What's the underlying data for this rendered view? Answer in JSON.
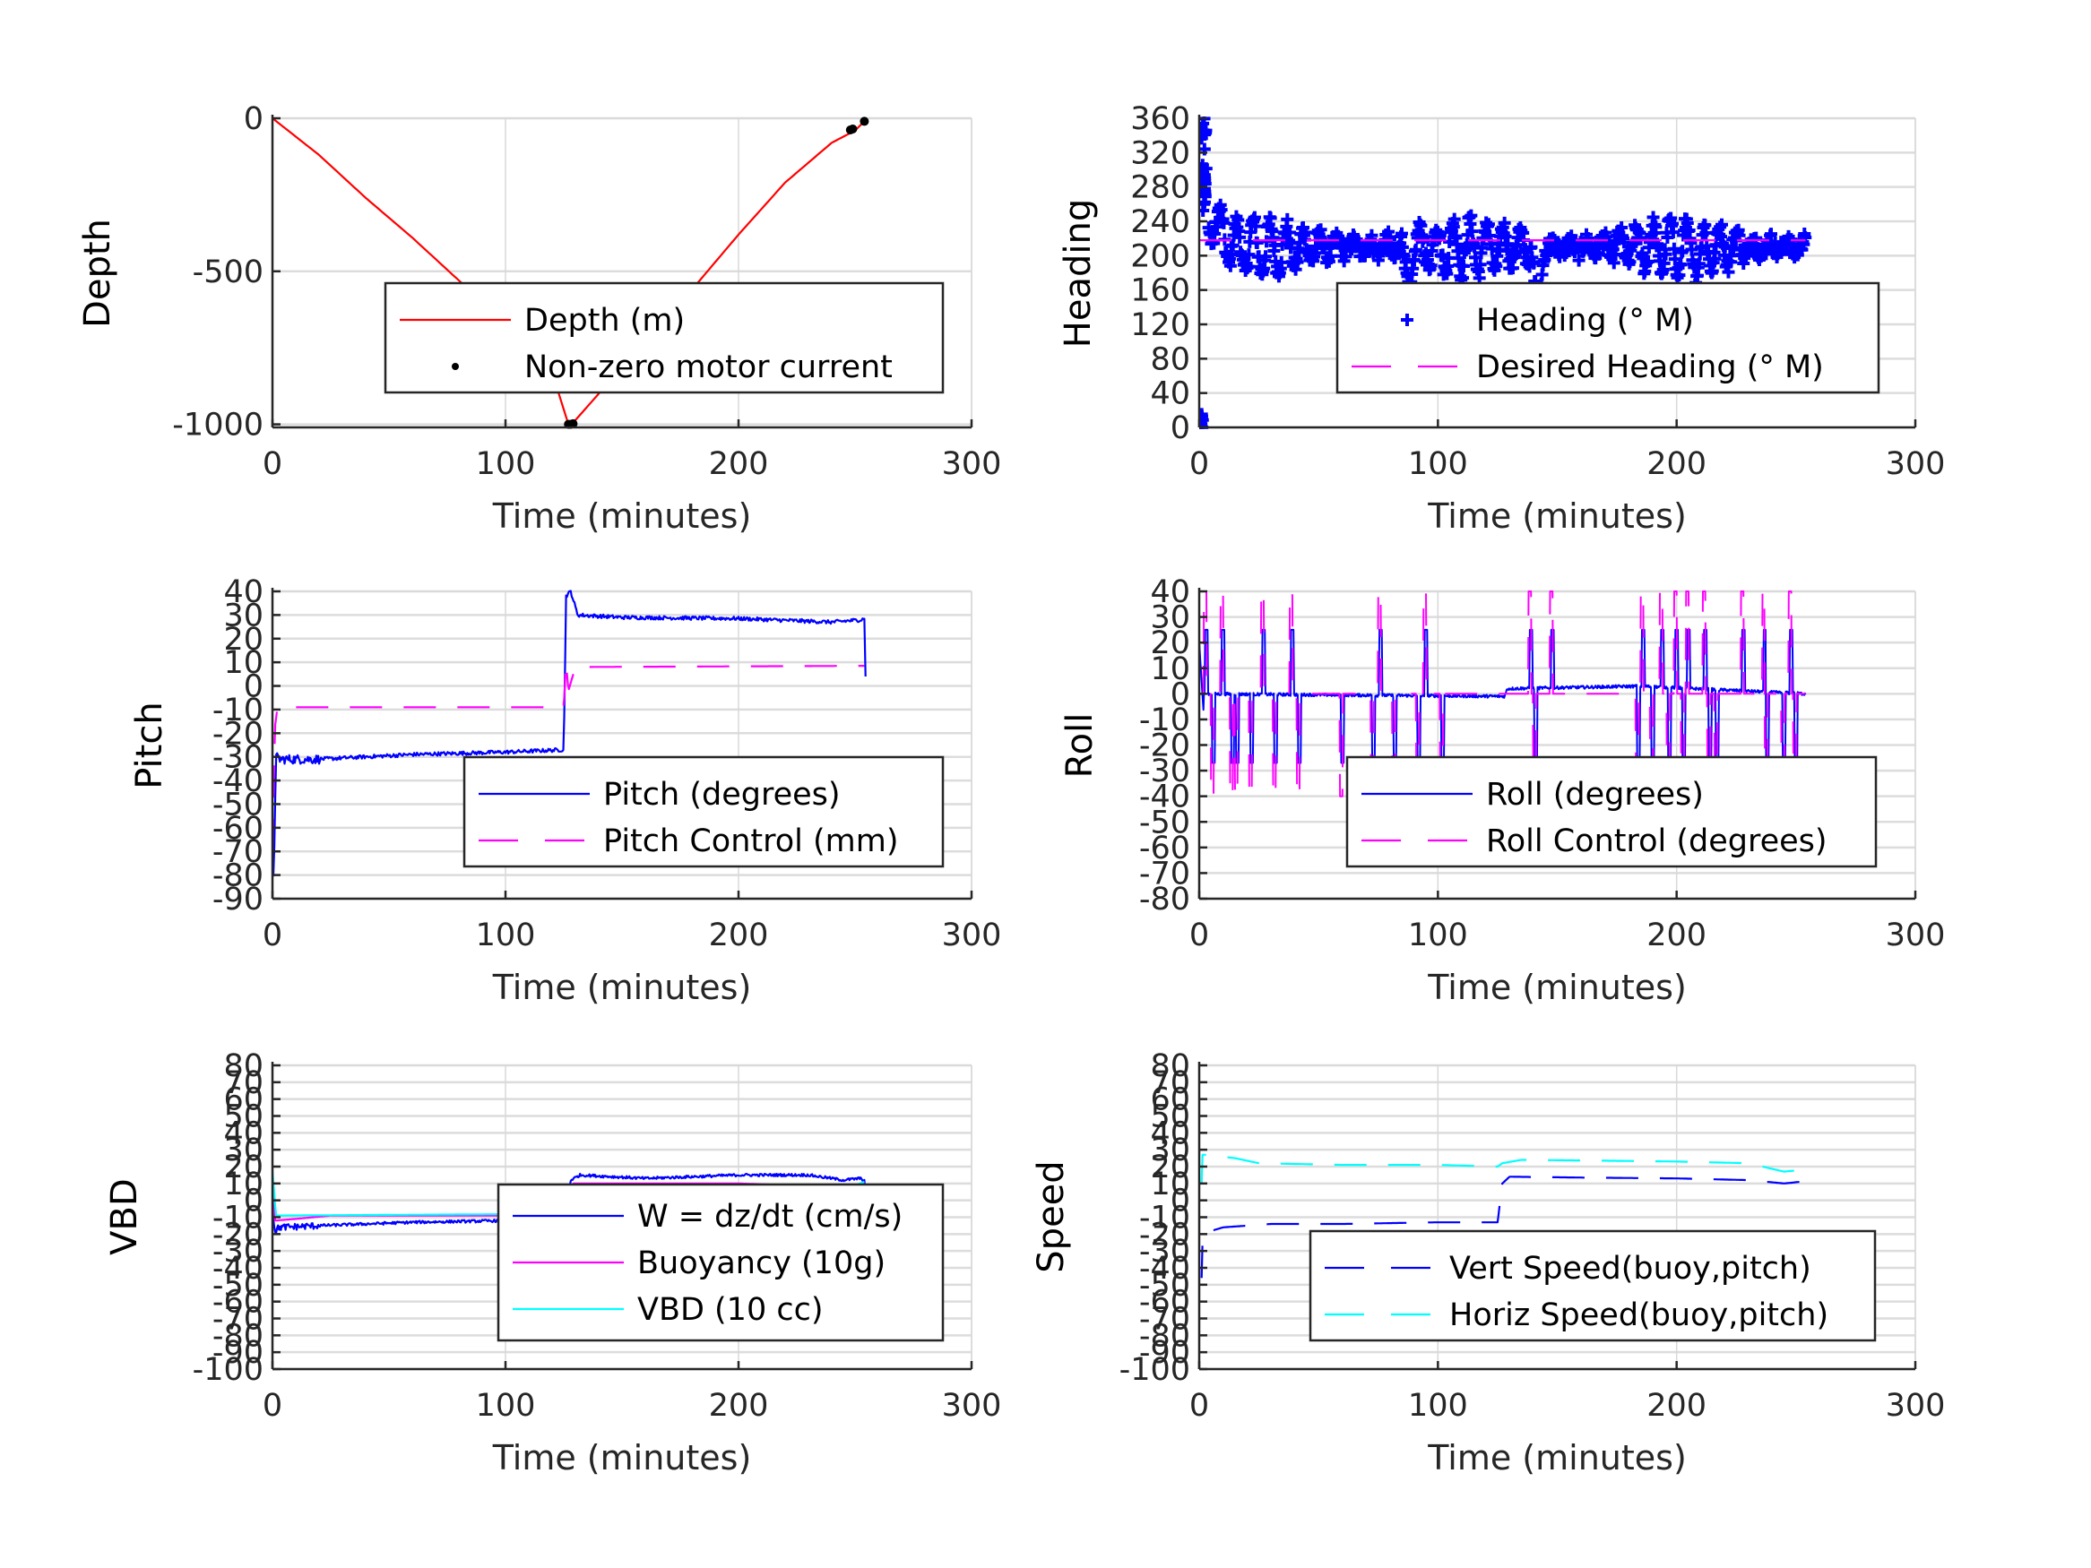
{
  "chart_data": [
    {
      "id": "depth",
      "type": "line",
      "xlabel": "Time (minutes)",
      "ylabel": "Depth",
      "xlim": [
        0,
        300
      ],
      "ylim": [
        -1010,
        0
      ],
      "xticks": [
        0,
        100,
        200,
        300
      ],
      "yticks": [
        0,
        -500,
        -1000
      ],
      "ytick_labels": [
        "0",
        "-500",
        "-1000"
      ],
      "grid": true,
      "legend_placement": "center-right",
      "series": [
        {
          "name": "Depth (m)",
          "color": "#ff0000",
          "style": "solid",
          "x": [
            0,
            10,
            20,
            40,
            60,
            80,
            100,
            120,
            127,
            129,
            140,
            160,
            180,
            200,
            220,
            240,
            250,
            254
          ],
          "y": [
            0,
            -60,
            -120,
            -260,
            -390,
            -530,
            -670,
            -830,
            -1000,
            -995,
            -900,
            -730,
            -560,
            -380,
            -210,
            -80,
            -40,
            -10
          ]
        },
        {
          "name": "Non-zero motor current",
          "color": "#000000",
          "style": "dot",
          "x": [
            127,
            128,
            129,
            248,
            249,
            254
          ],
          "y": [
            -1000,
            -1000,
            -998,
            -38,
            -35,
            -10
          ]
        }
      ]
    },
    {
      "id": "heading",
      "type": "scatter",
      "xlabel": "Time (minutes)",
      "ylabel": "Heading",
      "xlim": [
        0,
        300
      ],
      "ylim": [
        0,
        360
      ],
      "xticks": [
        0,
        100,
        200,
        300
      ],
      "yticks": [
        360,
        320,
        280,
        240,
        200,
        160,
        120,
        80,
        40,
        0
      ],
      "ytick_labels": [
        "360",
        "320",
        "280",
        "240",
        "200",
        "160",
        "120",
        "80",
        "40",
        "0"
      ],
      "grid": true,
      "legend_placement": "center-right",
      "series": [
        {
          "name": "Heading (° M)",
          "color": "#0000ff",
          "style": "plus",
          "mean": 210,
          "spread": 30,
          "t_end": 254,
          "start_spike": [
            360,
            340,
            300,
            260,
            10,
            0
          ],
          "dips": [
            [
              88,
              150
            ],
            [
              142,
              140
            ],
            [
              208,
              160
            ]
          ]
        },
        {
          "name": "Desired Heading (° M)",
          "color": "#ff00ff",
          "style": "dashed",
          "x": [
            0,
            254
          ],
          "y": [
            218,
            218
          ]
        }
      ]
    },
    {
      "id": "pitch",
      "type": "line",
      "xlabel": "Time (minutes)",
      "ylabel": "Pitch",
      "xlim": [
        0,
        300
      ],
      "ylim": [
        -90,
        40
      ],
      "xticks": [
        0,
        100,
        200,
        300
      ],
      "yticks": [
        40,
        30,
        20,
        10,
        0,
        -10,
        -20,
        -30,
        -40,
        -50,
        -60,
        -70,
        -80,
        -90
      ],
      "ytick_labels": [
        "40",
        "30",
        "20",
        "10",
        "0",
        "-10",
        "-20",
        "-30",
        "-40",
        "-50",
        "-60",
        "-70",
        "-80",
        "-90"
      ],
      "grid": true,
      "legend_placement": "center-right",
      "series": [
        {
          "name": "Pitch (degrees)",
          "color": "#0000ff",
          "style": "solid",
          "x": [
            0,
            0.5,
            1.5,
            3,
            20,
            60,
            100,
            125,
            126,
            128,
            131,
            150,
            200,
            240,
            253,
            254,
            254.5
          ],
          "y": [
            -70,
            -82,
            -30,
            -31,
            -31,
            -29,
            -28,
            -27,
            38,
            40,
            30,
            29,
            28.5,
            27,
            28,
            29,
            4
          ]
        },
        {
          "name": "Pitch Control (mm)",
          "color": "#ff00ff",
          "style": "dashed",
          "x": [
            0,
            1,
            2,
            5,
            125,
            126,
            127,
            130,
            254
          ],
          "y": [
            -70,
            -18,
            -10,
            -9,
            -9,
            10,
            -2,
            8,
            8.5
          ]
        }
      ]
    },
    {
      "id": "roll",
      "type": "line",
      "xlabel": "Time (minutes)",
      "ylabel": "Roll",
      "xlim": [
        0,
        300
      ],
      "ylim": [
        -80,
        40
      ],
      "xticks": [
        0,
        100,
        200,
        300
      ],
      "yticks": [
        40,
        30,
        20,
        10,
        0,
        -10,
        -20,
        -30,
        -40,
        -50,
        -60,
        -70,
        -80
      ],
      "ytick_labels": [
        "40",
        "30",
        "20",
        "10",
        "0",
        "-10",
        "-20",
        "-30",
        "-40",
        "-50",
        "-60",
        "-70",
        "-80"
      ],
      "grid": true,
      "legend_placement": "center-right",
      "series": [
        {
          "name": "Roll (degrees)",
          "color": "#0000ff",
          "style": "solid",
          "baseline": [
            [
              0,
              0
            ],
            [
              128,
              -1
            ],
            [
              129,
              2
            ],
            [
              185,
              3
            ],
            [
              254,
              0
            ]
          ],
          "spikes_up": [
            3,
            10,
            27,
            39,
            76,
            95,
            139,
            148,
            186,
            194,
            200,
            205,
            212,
            228,
            237,
            248
          ],
          "spikes_down": [
            6,
            14,
            16,
            22,
            32,
            42,
            60,
            73,
            82,
            92,
            102,
            141,
            184,
            190,
            197,
            203,
            214,
            217,
            238,
            245,
            250
          ],
          "spike_up_value": 25,
          "spike_down_value": -27
        },
        {
          "name": "Roll Control (degrees)",
          "color": "#ff00ff",
          "style": "dashed",
          "baseline": 0,
          "high": 40,
          "low": -40
        }
      ]
    },
    {
      "id": "vbd",
      "type": "line",
      "xlabel": "Time (minutes)",
      "ylabel": "VBD",
      "xlim": [
        0,
        300
      ],
      "ylim": [
        -100,
        80
      ],
      "xticks": [
        0,
        100,
        200,
        300
      ],
      "yticks": [
        80,
        70,
        60,
        50,
        40,
        30,
        20,
        10,
        0,
        -10,
        -20,
        -30,
        -40,
        -50,
        -60,
        -70,
        -80,
        -90,
        -100
      ],
      "ytick_labels": [
        "80",
        "70",
        "60",
        "50",
        "40",
        "30",
        "20",
        "10",
        "0",
        "-10",
        "-20",
        "-30",
        "-40",
        "-50",
        "-60",
        "-70",
        "-80",
        "-90",
        "-100"
      ],
      "grid": true,
      "legend_placement": "center-right",
      "series": [
        {
          "name": "W = dz/dt (cm/s)",
          "color": "#0000ff",
          "style": "solid",
          "x": [
            0,
            1,
            3,
            20,
            60,
            100,
            125,
            128,
            132,
            160,
            200,
            230,
            245,
            252,
            254,
            254.5
          ],
          "y": [
            -5,
            -18,
            -16,
            -15,
            -13,
            -12,
            -13,
            12,
            15,
            13,
            15,
            15,
            12,
            13,
            12,
            1
          ]
        },
        {
          "name": "Buoyancy (10g)",
          "color": "#ff00ff",
          "style": "solid",
          "x": [
            0,
            1,
            10,
            25,
            125,
            129,
            200,
            240,
            249,
            252,
            254
          ],
          "y": [
            10,
            -12,
            -11,
            -9,
            -9,
            10,
            10,
            8,
            7,
            10,
            10
          ]
        },
        {
          "name": "VBD (10 cc)",
          "color": "#00ffff",
          "style": "solid",
          "x": [
            0,
            1.5,
            125,
            129,
            200,
            249,
            252,
            254
          ],
          "y": [
            18,
            -9,
            -8,
            9,
            9,
            8,
            10,
            11
          ]
        }
      ]
    },
    {
      "id": "speed",
      "type": "line",
      "xlabel": "Time (minutes)",
      "ylabel": "Speed",
      "xlim": [
        0,
        300
      ],
      "ylim": [
        -100,
        80
      ],
      "xticks": [
        0,
        100,
        200,
        300
      ],
      "yticks": [
        80,
        70,
        60,
        50,
        40,
        30,
        20,
        10,
        0,
        -10,
        -20,
        -30,
        -40,
        -50,
        -60,
        -70,
        -80,
        -90,
        -100
      ],
      "ytick_labels": [
        "80",
        "70",
        "60",
        "50",
        "40",
        "30",
        "20",
        "10",
        "0",
        "-10",
        "-20",
        "-30",
        "-40",
        "-50",
        "-60",
        "-70",
        "-80",
        "-90",
        "-100"
      ],
      "grid": true,
      "legend_placement": "center-right",
      "series": [
        {
          "name": "Vert Speed(buoy,pitch)",
          "color": "#0000ff",
          "style": "dashed",
          "x": [
            1,
            1.2,
            3,
            10,
            30,
            60,
            100,
            125,
            127,
            130,
            160,
            200,
            230,
            245,
            252,
            254
          ],
          "y": [
            -46,
            -25,
            -19,
            -16,
            -14,
            -14,
            -13,
            -13,
            10,
            14,
            13.5,
            13,
            12,
            10,
            11,
            13
          ]
        },
        {
          "name": "Horiz Speed(buoy,pitch)",
          "color": "#00ffff",
          "style": "dashed",
          "x": [
            1,
            1.2,
            3,
            15,
            25,
            60,
            100,
            125,
            127,
            135,
            170,
            200,
            230,
            245,
            252,
            254
          ],
          "y": [
            10,
            27,
            27,
            25,
            22,
            21,
            21,
            20,
            22,
            24,
            23.5,
            23,
            22,
            17,
            18,
            20
          ]
        }
      ]
    }
  ],
  "axis_label_text": {
    "x": "Time (minutes)"
  }
}
